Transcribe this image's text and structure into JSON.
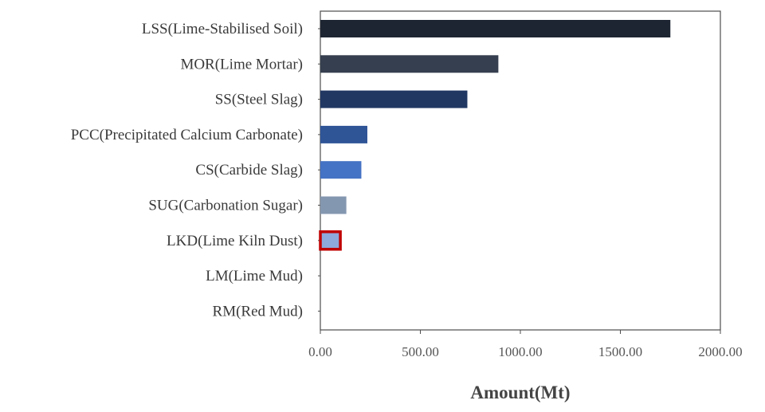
{
  "chart_data": {
    "type": "bar",
    "orientation": "horizontal",
    "title": "",
    "xlabel": "Amount(Mt)",
    "ylabel": "",
    "xlim": [
      0,
      2000
    ],
    "xticks": [
      0,
      500,
      1000,
      1500,
      2000
    ],
    "xtick_labels": [
      "0.00",
      "500.00",
      "1000.00",
      "1500.00",
      "2000.00"
    ],
    "grid": false,
    "categories": [
      "LSS(Lime-Stabilised Soil)",
      "MOR(Lime Mortar)",
      "SS(Steel Slag)",
      "PCC(Precipitated Calcium Carbonate)",
      "CS(Carbide Slag)",
      "SUG(Carbonation Sugar)",
      "LKD(Lime Kiln Dust)",
      "LM(Lime Mud)",
      "RM(Red Mud)"
    ],
    "values": [
      1750,
      890,
      735,
      235,
      205,
      130,
      100,
      0,
      0
    ],
    "bar_colors": [
      "#1e2532",
      "#353f4f",
      "#213863",
      "#2f5597",
      "#4472c4",
      "#8497b0",
      "#8ea9db",
      "#8ea9db",
      "#8ea9db"
    ],
    "highlight": {
      "category": "LKD(Lime Kiln Dust)",
      "outline_color": "#c00000"
    }
  }
}
